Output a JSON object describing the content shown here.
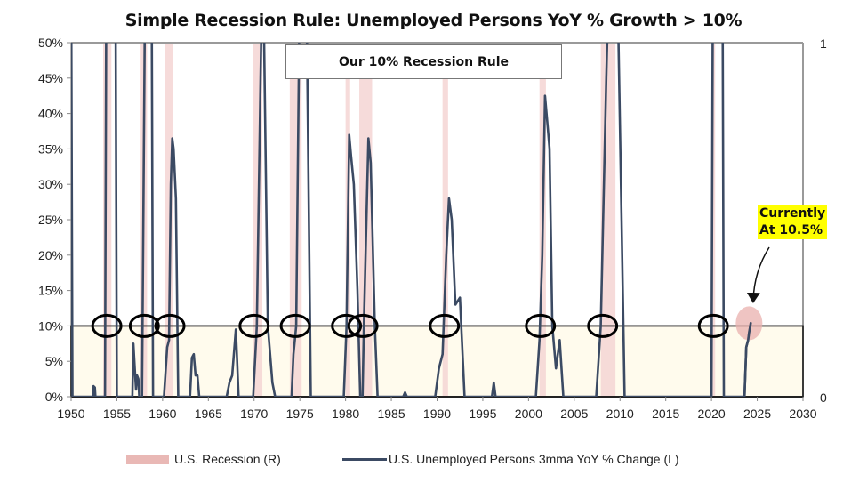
{
  "chart_data": {
    "type": "line",
    "title": "Simple Recession Rule: Unemployed Persons YoY % Growth > 10%",
    "xlabel": "",
    "ylabel": "",
    "xlim": [
      1950,
      2030
    ],
    "ylim": [
      0,
      50
    ],
    "y2lim": [
      0,
      1
    ],
    "x_ticks": [
      "1950",
      "1955",
      "1960",
      "1965",
      "1970",
      "1975",
      "1980",
      "1985",
      "1990",
      "1995",
      "2000",
      "2005",
      "2010",
      "2015",
      "2020",
      "2025",
      "2030"
    ],
    "y_ticks": [
      "0%",
      "5%",
      "10%",
      "15%",
      "20%",
      "25%",
      "30%",
      "35%",
      "40%",
      "45%",
      "50%"
    ],
    "y2_ticks": [
      "0",
      "1"
    ],
    "threshold": 10,
    "legend": {
      "position": "bottom",
      "recession_label": "U.S. Recession (R)",
      "line_label": "U.S. Unemployed Persons 3mma YoY % Change (L)"
    },
    "recessions": [
      [
        1953.5,
        1954.4
      ],
      [
        1957.6,
        1958.3
      ],
      [
        1960.3,
        1961.1
      ],
      [
        1969.9,
        1970.9
      ],
      [
        1973.9,
        1975.2
      ],
      [
        1980.0,
        1980.5
      ],
      [
        1981.5,
        1982.9
      ],
      [
        1990.6,
        1991.2
      ],
      [
        2001.2,
        2001.9
      ],
      [
        2007.9,
        2009.5
      ],
      [
        2020.1,
        2020.4
      ]
    ],
    "series": [
      {
        "name": "U.S. Unemployed Persons 3mma YoY % Change (L)",
        "points": [
          [
            1950.0,
            60
          ],
          [
            1950.15,
            0
          ],
          [
            1952.4,
            0
          ],
          [
            1952.45,
            1.5
          ],
          [
            1952.6,
            1.3
          ],
          [
            1952.65,
            0
          ],
          [
            1953.7,
            0
          ],
          [
            1953.85,
            60
          ],
          [
            1954.85,
            60
          ],
          [
            1955.0,
            0
          ],
          [
            1956.7,
            0
          ],
          [
            1956.8,
            7.5
          ],
          [
            1957.0,
            3
          ],
          [
            1957.1,
            1
          ],
          [
            1957.2,
            3
          ],
          [
            1957.35,
            2.5
          ],
          [
            1957.45,
            0
          ],
          [
            1957.75,
            0
          ],
          [
            1958.1,
            60
          ],
          [
            1958.8,
            60
          ],
          [
            1958.95,
            0
          ],
          [
            1960.15,
            0
          ],
          [
            1960.5,
            7
          ],
          [
            1960.7,
            8
          ],
          [
            1960.9,
            30
          ],
          [
            1961.05,
            36.5
          ],
          [
            1961.2,
            35
          ],
          [
            1961.45,
            28
          ],
          [
            1961.7,
            0
          ],
          [
            1963.0,
            0
          ],
          [
            1963.2,
            5.5
          ],
          [
            1963.4,
            6
          ],
          [
            1963.6,
            3
          ],
          [
            1963.8,
            3
          ],
          [
            1964.0,
            0
          ],
          [
            1967.0,
            0
          ],
          [
            1967.3,
            2
          ],
          [
            1967.6,
            3
          ],
          [
            1968.0,
            9.5
          ],
          [
            1968.3,
            0
          ],
          [
            1969.9,
            0
          ],
          [
            1970.3,
            10
          ],
          [
            1970.7,
            45
          ],
          [
            1970.9,
            60
          ],
          [
            1971.0,
            60
          ],
          [
            1971.5,
            10
          ],
          [
            1972.0,
            2
          ],
          [
            1972.3,
            0
          ],
          [
            1974.1,
            0
          ],
          [
            1974.3,
            6
          ],
          [
            1974.6,
            10
          ],
          [
            1975.0,
            60
          ],
          [
            1975.7,
            60
          ],
          [
            1976.2,
            0
          ],
          [
            1979.8,
            0
          ],
          [
            1980.1,
            10
          ],
          [
            1980.4,
            37
          ],
          [
            1980.6,
            34
          ],
          [
            1980.9,
            30
          ],
          [
            1981.3,
            15
          ],
          [
            1981.6,
            0
          ],
          [
            1981.85,
            0
          ],
          [
            1982.0,
            10
          ],
          [
            1982.5,
            36.5
          ],
          [
            1982.75,
            33
          ],
          [
            1983.2,
            10
          ],
          [
            1983.5,
            0
          ],
          [
            1986.3,
            0
          ],
          [
            1986.5,
            0.6
          ],
          [
            1986.7,
            0
          ],
          [
            1989.8,
            0
          ],
          [
            1990.2,
            4
          ],
          [
            1990.6,
            6
          ],
          [
            1991.0,
            20
          ],
          [
            1991.3,
            28
          ],
          [
            1991.6,
            25
          ],
          [
            1992.0,
            13
          ],
          [
            1992.5,
            14
          ],
          [
            1993.0,
            0
          ],
          [
            1996.0,
            0
          ],
          [
            1996.2,
            2
          ],
          [
            1996.4,
            0
          ],
          [
            2000.8,
            0
          ],
          [
            2001.2,
            8
          ],
          [
            2001.5,
            20
          ],
          [
            2001.8,
            42.5
          ],
          [
            2002.1,
            38
          ],
          [
            2002.3,
            35
          ],
          [
            2002.6,
            10
          ],
          [
            2003.0,
            4
          ],
          [
            2003.4,
            8
          ],
          [
            2003.8,
            0
          ],
          [
            2007.4,
            0
          ],
          [
            2007.9,
            10
          ],
          [
            2008.5,
            45
          ],
          [
            2008.8,
            60
          ],
          [
            2009.7,
            60
          ],
          [
            2010.5,
            0
          ],
          [
            2020.0,
            0
          ],
          [
            2020.15,
            60
          ],
          [
            2021.2,
            60
          ],
          [
            2021.35,
            0
          ],
          [
            2023.6,
            0
          ],
          [
            2023.8,
            7
          ],
          [
            2024.0,
            8
          ],
          [
            2024.1,
            9
          ],
          [
            2024.3,
            10.5
          ]
        ]
      }
    ],
    "annotations": {
      "rule_box": "Our 10% Recession Rule",
      "callout_line1": "Currently",
      "callout_line2": "At 10.5%",
      "circled_crossings": [
        1953.9,
        1958.0,
        1960.8,
        1970.0,
        1974.5,
        1980.1,
        1981.9,
        1990.8,
        2001.3,
        2008.1,
        2020.2
      ],
      "current_value": 10.5,
      "current_year": 2024.3
    },
    "colors": {
      "line": "#3b4a63",
      "recession": "#f4d5d3",
      "below_threshold_fill": "#fffbed",
      "callout_bg": "#ffff00",
      "current_marker": "#eab0ae"
    }
  }
}
